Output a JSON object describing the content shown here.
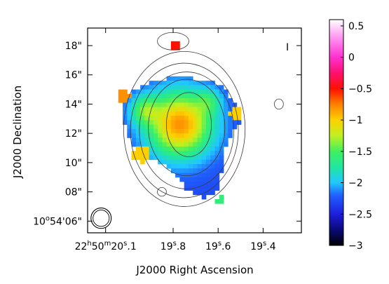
{
  "chart_data": {
    "type": "heatmap",
    "title": "",
    "xlabel": "J2000 Right Ascension",
    "ylabel": "J2000 Declination",
    "x_ticks": [
      {
        "value_sec": 20.1,
        "label": "22h50m20s.1",
        "parts": {
          "h": "22",
          "m": "50",
          "s": "20",
          "frac": ".1"
        }
      },
      {
        "value_sec": 19.8,
        "label": "19s.8",
        "parts": {
          "s": "19",
          "frac": ".8"
        }
      },
      {
        "value_sec": 19.6,
        "label": "19s.6",
        "parts": {
          "s": "19",
          "frac": ".6"
        }
      },
      {
        "value_sec": 19.4,
        "label": "19s.4",
        "parts": {
          "s": "19",
          "frac": ".4"
        }
      }
    ],
    "y_ticks": [
      {
        "value_arcsec": 18,
        "label": "18\""
      },
      {
        "value_arcsec": 16,
        "label": "16\""
      },
      {
        "value_arcsec": 14,
        "label": "14\""
      },
      {
        "value_arcsec": 12,
        "label": "12\""
      },
      {
        "value_arcsec": 10,
        "label": "10\""
      },
      {
        "value_arcsec": 8,
        "label": "08\""
      },
      {
        "value_arcsec": 6,
        "label": "10°54'06\"",
        "parts": {
          "d": "10",
          "m": "54",
          "s": "06"
        }
      }
    ],
    "xlim_sec": [
      20.18,
      19.23
    ],
    "ylim_arcsec": [
      5.2,
      19.2
    ],
    "colorbar": {
      "range": [
        -3,
        0.6
      ],
      "ticks": [
        {
          "value": 0.5,
          "label": "0.5"
        },
        {
          "value": 0,
          "label": "0"
        },
        {
          "value": -0.5,
          "label": "−0.5"
        },
        {
          "value": -1,
          "label": "−1"
        },
        {
          "value": -1.5,
          "label": "−1.5"
        },
        {
          "value": -2,
          "label": "−2"
        },
        {
          "value": -2.5,
          "label": "−2.5"
        },
        {
          "value": -3,
          "label": "−3"
        }
      ],
      "colors": [
        [
          -3,
          "#000000"
        ],
        [
          -2.75,
          "#0a0a78"
        ],
        [
          -2.5,
          "#1e1edc"
        ],
        [
          -2.2,
          "#2060ff"
        ],
        [
          -2.0,
          "#20c8ff"
        ],
        [
          -1.75,
          "#20e6a0"
        ],
        [
          -1.5,
          "#40f060"
        ],
        [
          -1.25,
          "#c0f020"
        ],
        [
          -1.0,
          "#ffd000"
        ],
        [
          -0.75,
          "#ff8000"
        ],
        [
          -0.5,
          "#ff1000"
        ],
        [
          -0.25,
          "#ff1070"
        ],
        [
          0.0,
          "#ff30d0"
        ],
        [
          0.3,
          "#ff90f0"
        ],
        [
          0.6,
          "#ffffff"
        ]
      ]
    },
    "spectral_index_map": {
      "grid_step_arcsec": 0.3,
      "background": -2.3,
      "components": [
        {
          "ra_sec": 19.77,
          "dec_arcsec": 12.6,
          "sigma_arcsec": 1.6,
          "amplitude": 1.5
        },
        {
          "ra_sec": 19.93,
          "dec_arcsec": 13.6,
          "sigma_arcsec": 0.7,
          "amplitude": 0.6
        },
        {
          "ra_sec": 19.64,
          "dec_arcsec": 14.2,
          "sigma_arcsec": 0.6,
          "amplitude": 0.4
        }
      ],
      "edge_patches": [
        {
          "ra_sec": 20.02,
          "dec_arcsec": 14.6,
          "radius_arcsec": 0.45,
          "value": -0.8
        },
        {
          "ra_sec": 19.94,
          "dec_arcsec": 10.6,
          "radius_arcsec": 0.6,
          "value": -1.0
        },
        {
          "ra_sec": 19.52,
          "dec_arcsec": 13.3,
          "radius_arcsec": 0.45,
          "value": -1.0
        },
        {
          "ra_sec": 19.79,
          "dec_arcsec": 17.9,
          "radius_arcsec": 0.3,
          "value": -0.5
        },
        {
          "ra_sec": 19.59,
          "dec_arcsec": 7.4,
          "radius_arcsec": 0.3,
          "value": -1.6
        }
      ],
      "region": [
        [
          19.88,
          15.6
        ],
        [
          19.78,
          15.9
        ],
        [
          19.7,
          15.7
        ],
        [
          19.6,
          15.4
        ],
        [
          19.55,
          14.6
        ],
        [
          19.5,
          13.8
        ],
        [
          19.49,
          12.9
        ],
        [
          19.54,
          12.0
        ],
        [
          19.58,
          10.8
        ],
        [
          19.58,
          9.6
        ],
        [
          19.6,
          8.2
        ],
        [
          19.66,
          7.5
        ],
        [
          19.74,
          8.1
        ],
        [
          19.78,
          9.0
        ],
        [
          19.84,
          9.8
        ],
        [
          19.93,
          10.4
        ],
        [
          19.99,
          11.4
        ],
        [
          20.02,
          12.8
        ],
        [
          20.02,
          14.0
        ],
        [
          19.98,
          15.0
        ]
      ]
    },
    "contours": [
      {
        "ra_sec": 19.73,
        "dec_arcsec": 12.6,
        "rx_sec": 0.1,
        "ry_arcsec": 2.2
      },
      {
        "ra_sec": 19.74,
        "dec_arcsec": 12.4,
        "rx_sec": 0.17,
        "ry_arcsec": 3.3
      },
      {
        "ra_sec": 19.74,
        "dec_arcsec": 12.2,
        "rx_sec": 0.21,
        "ry_arcsec": 4.0
      },
      {
        "ra_sec": 19.75,
        "dec_arcsec": 12.2,
        "rx_sec": 0.24,
        "ry_arcsec": 4.6
      },
      {
        "ra_sec": 19.75,
        "dec_arcsec": 12.3,
        "rx_sec": 0.27,
        "ry_arcsec": 5.3
      },
      {
        "ra_sec": 19.8,
        "dec_arcsec": 18.3,
        "rx_sec": 0.07,
        "ry_arcsec": 0.6
      },
      {
        "ra_sec": 19.33,
        "dec_arcsec": 14.0,
        "rx_sec": 0.02,
        "ry_arcsec": 0.35
      },
      {
        "ra_sec": 19.85,
        "dec_arcsec": 8.0,
        "rx_sec": 0.02,
        "ry_arcsec": 0.3
      }
    ],
    "beam": {
      "ra_sec": 20.12,
      "dec_arcsec": 6.2,
      "rx_sec": 0.045,
      "ry_arcsec": 0.7
    },
    "marker": {
      "label": "I"
    }
  }
}
